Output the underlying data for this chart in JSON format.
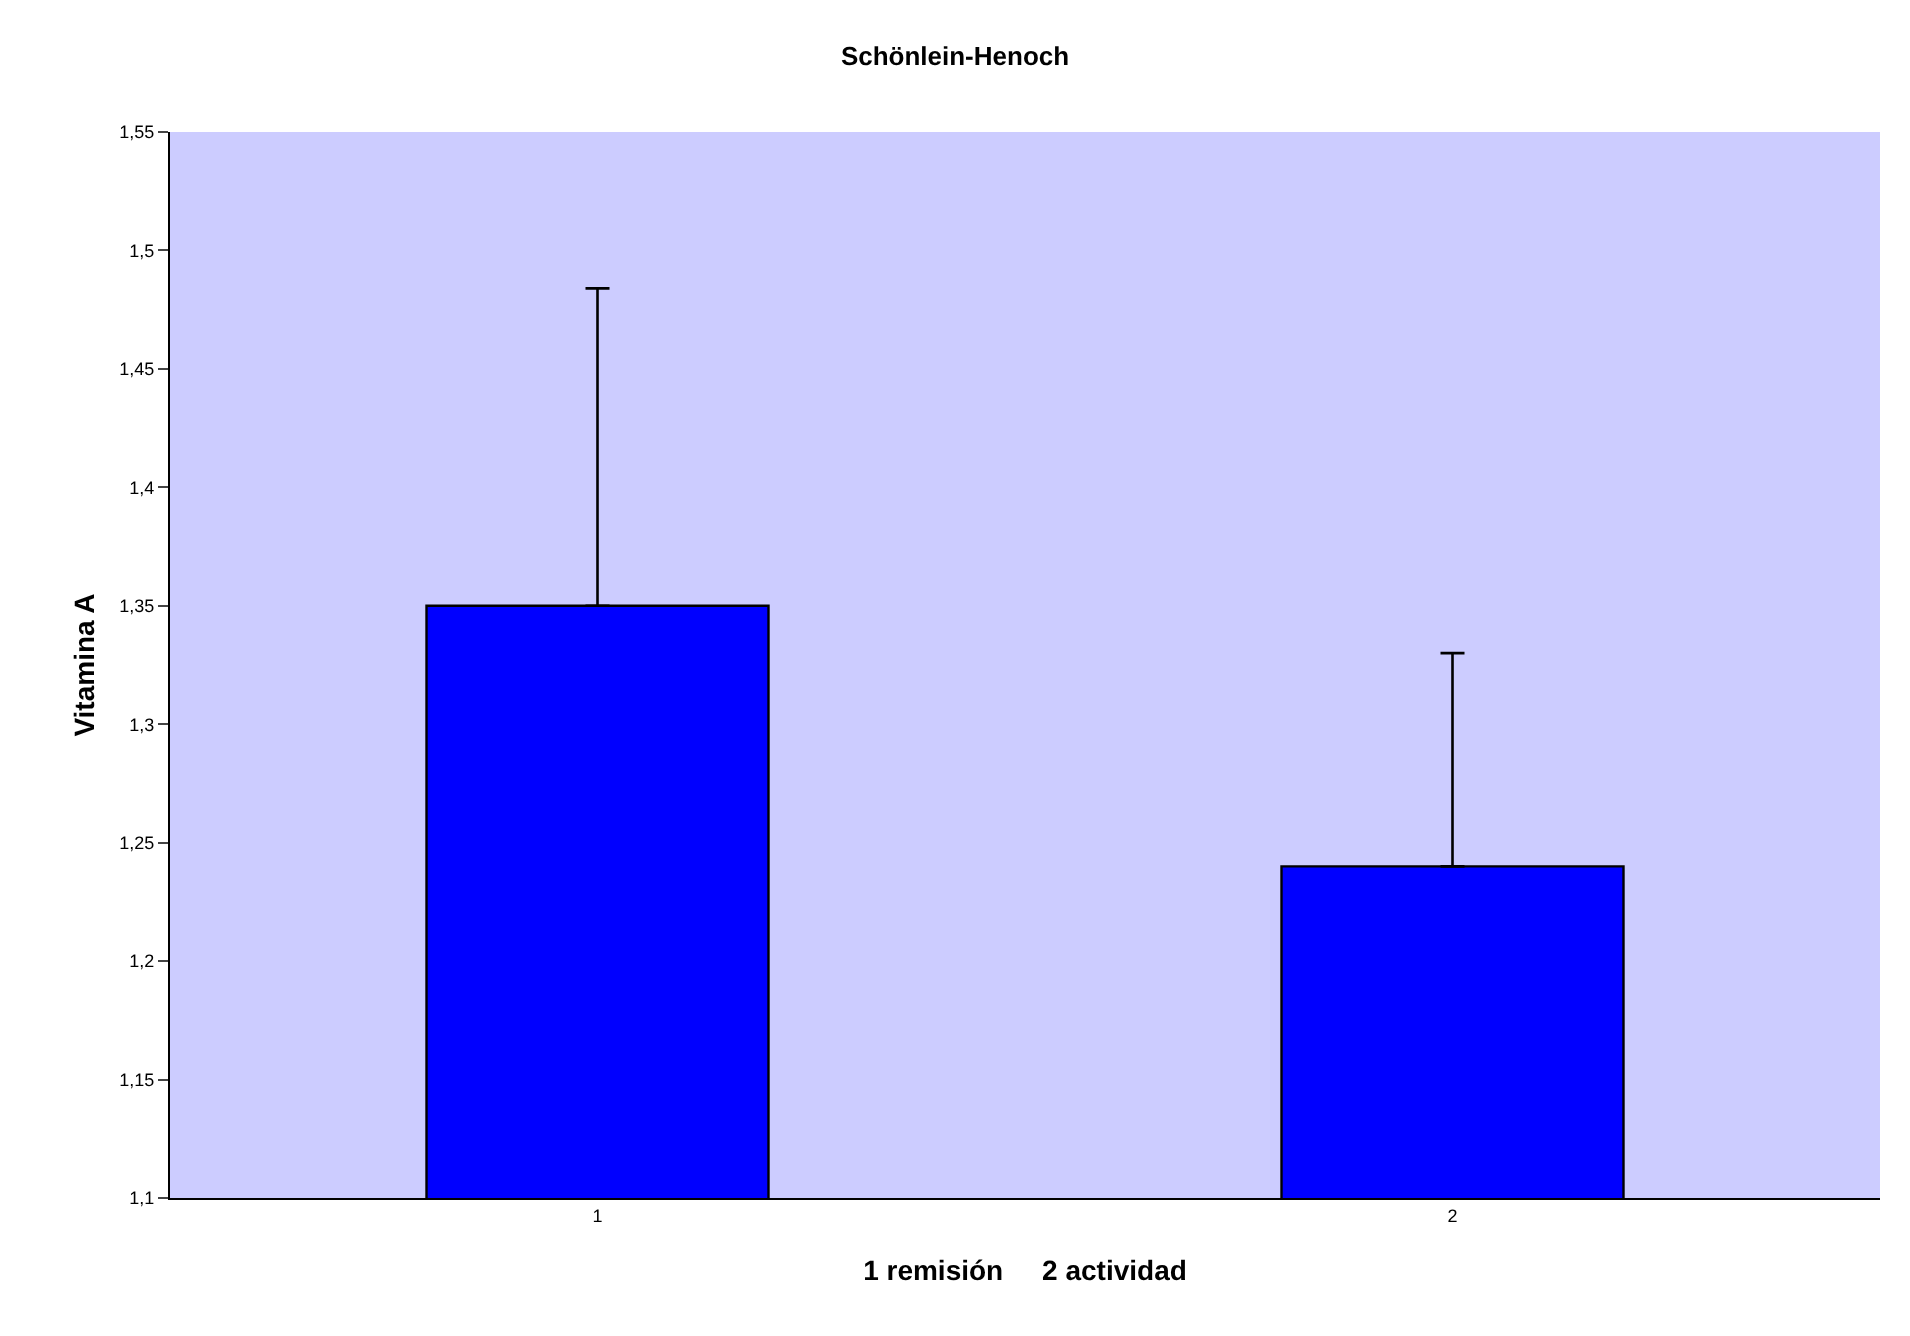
{
  "chart_data": {
    "type": "bar",
    "title": "Schönlein-Henoch",
    "xlabel": "1 remisión     2 actividad",
    "ylabel": "Vitamina A",
    "categories": [
      "1",
      "2"
    ],
    "values": [
      1.35,
      1.24
    ],
    "color": "#0000ff",
    "errors": [
      [
        1.35,
        1.484
      ],
      [
        1.24,
        1.33
      ]
    ],
    "ylim": [
      1.1,
      1.55
    ],
    "yticks": [
      {
        "value": 1.1,
        "label": "1,1"
      },
      {
        "value": 1.15,
        "label": "1,15"
      },
      {
        "value": 1.2,
        "label": "1,2"
      },
      {
        "value": 1.25,
        "label": "1,25"
      },
      {
        "value": 1.3,
        "label": "1,3"
      },
      {
        "value": 1.35,
        "label": "1,35"
      },
      {
        "value": 1.4,
        "label": "1,4"
      },
      {
        "value": 1.45,
        "label": "1,45"
      },
      {
        "value": 1.5,
        "label": "1,5"
      },
      {
        "value": 1.55,
        "label": "1,55"
      }
    ],
    "grid": false
  }
}
